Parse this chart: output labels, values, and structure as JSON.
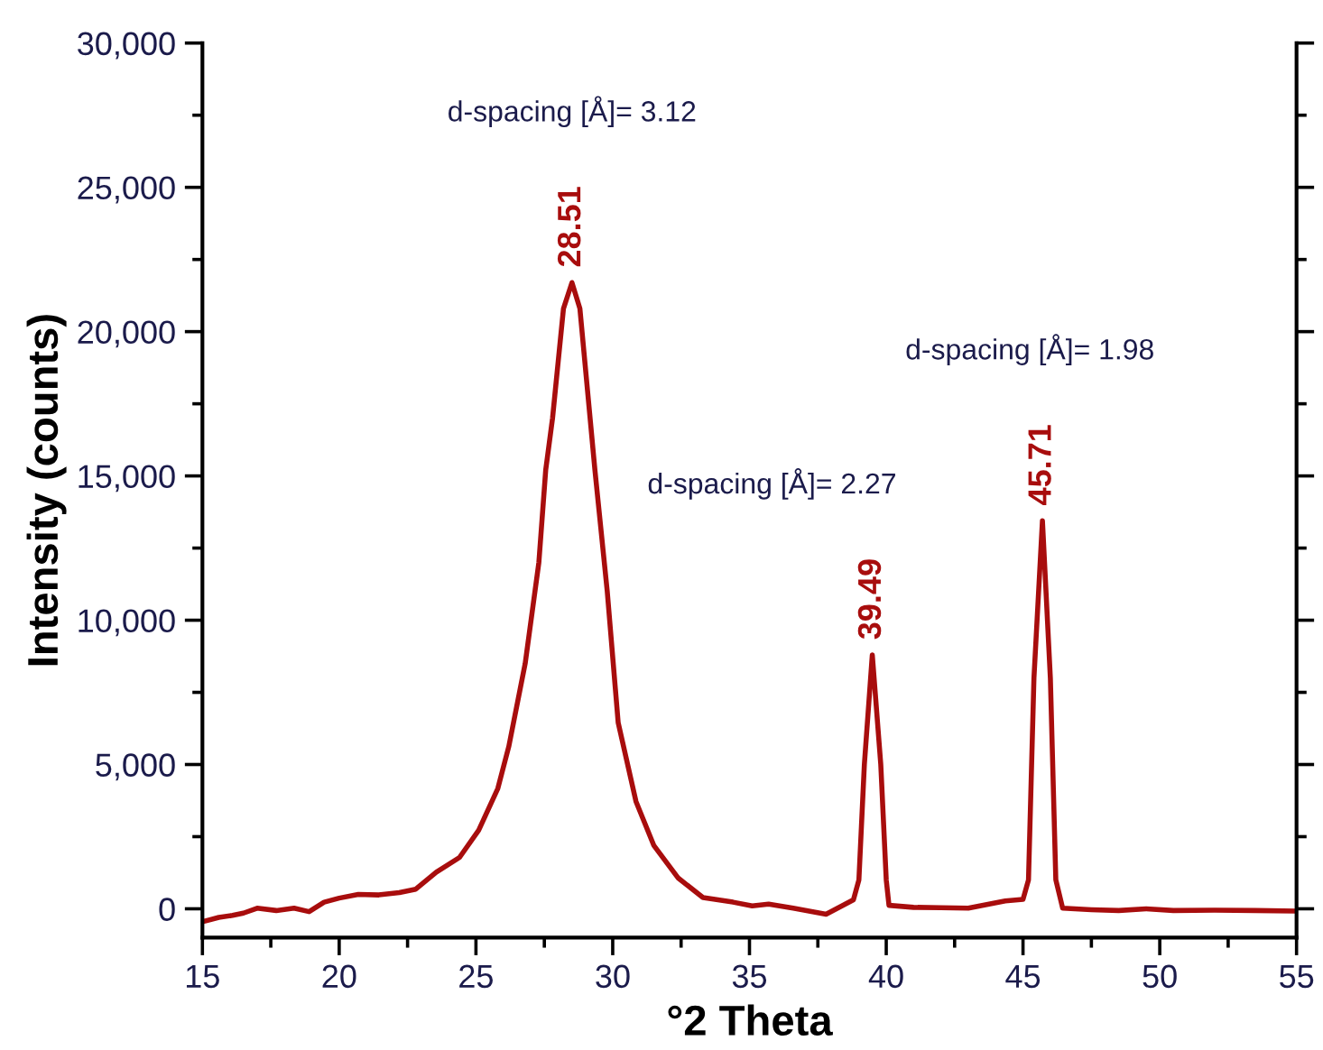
{
  "chart_data": {
    "type": "line",
    "xlabel": "°2 Theta",
    "ylabel": "Intensity (counts)",
    "x": [
      15,
      15.6,
      16.1,
      16.5,
      17.0,
      17.7,
      18.35,
      18.9,
      19.45,
      20.0,
      20.7,
      21.45,
      22.2,
      22.8,
      23.55,
      24.4,
      25.1,
      25.8,
      26.2,
      26.8,
      27.3,
      27.55,
      27.8,
      28.2,
      28.51,
      28.8,
      29.35,
      29.8,
      30.2,
      30.85,
      31.5,
      32.4,
      33.3,
      34.4,
      35.1,
      35.7,
      36.6,
      37.8,
      38.8,
      39.0,
      39.2,
      39.49,
      39.8,
      40.0,
      40.1,
      41.0,
      42.0,
      43.0,
      44.35,
      45.0,
      45.2,
      45.4,
      45.71,
      46.0,
      46.2,
      46.45,
      47.5,
      48.5,
      49.5,
      50.5,
      52.0,
      53.5,
      55
    ],
    "series": [
      {
        "color": "#a80d0d",
        "values": [
          -450,
          -300,
          -230,
          -150,
          20,
          -60,
          20,
          -100,
          230,
          370,
          500,
          480,
          560,
          680,
          1270,
          1780,
          2720,
          4170,
          5620,
          8500,
          12000,
          15200,
          17000,
          20800,
          21700,
          20800,
          15200,
          11000,
          6450,
          3720,
          2200,
          1060,
          390,
          230,
          100,
          160,
          20,
          -190,
          310,
          1000,
          5000,
          8800,
          5000,
          1000,
          120,
          50,
          40,
          20,
          270,
          330,
          1000,
          8000,
          13450,
          8000,
          1000,
          20,
          -30,
          -60,
          0,
          -60,
          -50,
          -60,
          -80
        ]
      }
    ],
    "xlim": [
      15,
      55
    ],
    "xticks": [
      15,
      20,
      25,
      30,
      35,
      40,
      45,
      50,
      55
    ],
    "ylim": [
      -1000,
      30000
    ],
    "yticks": [
      0,
      {
        "value": 5000,
        "label": "5,000"
      },
      {
        "value": 10000,
        "label": "10,000"
      },
      {
        "value": 15000,
        "label": "15,000"
      },
      {
        "value": 20000,
        "label": "20,000"
      },
      {
        "value": 25000,
        "label": "25,000"
      },
      {
        "value": 30000,
        "label": "30,000"
      }
    ],
    "grid": false,
    "marker": "none",
    "line_style": "solid",
    "annotations": [
      {
        "text": "28.51",
        "x": 28.51,
        "y": 21700
      },
      {
        "text": "39.49",
        "x": 39.49,
        "y": 8800
      },
      {
        "text": "45.71",
        "x": 45.71,
        "y": 13450
      },
      "d-spacing [Å]= 3.12",
      "d-spacing [Å]= 2.27",
      "d-spacing [Å]= 1.98"
    ]
  }
}
